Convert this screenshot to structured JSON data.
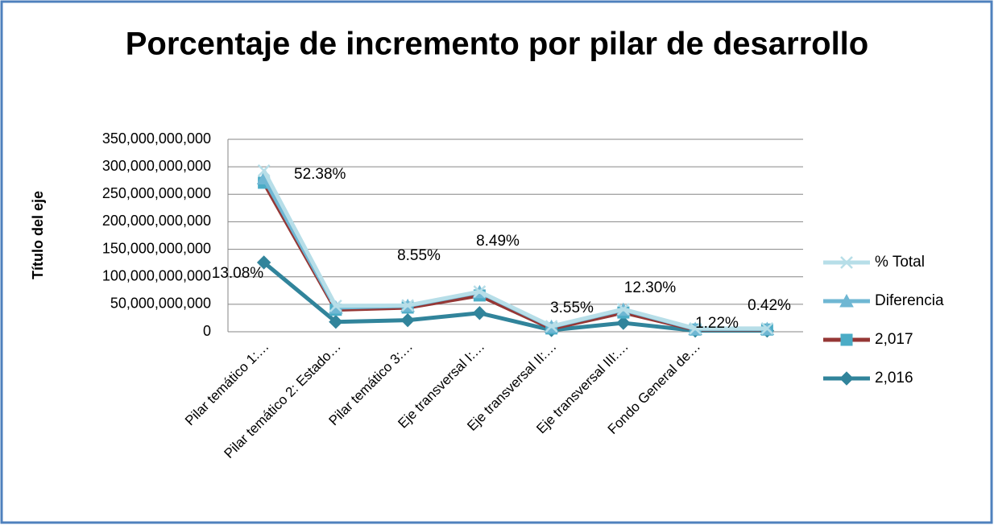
{
  "chart_data": {
    "type": "line",
    "title": "Porcentaje de incremento por pilar de desarrollo",
    "y_axis_label": "Título del eje",
    "categories": [
      "Pilar temático 1:…",
      "Pilar temático 2: Estado…",
      "Pilar temático 3:…",
      "Eje transversal I:…",
      "Eje transversal II:…",
      "Eje transversal III:…",
      "Fondo General de…",
      null
    ],
    "series": [
      {
        "name": "% Total",
        "color": "#b7dee8",
        "marker": "x",
        "values": [
          293000000000,
          47000000000,
          48000000000,
          73000000000,
          10000000000,
          41000000000,
          6000000000,
          6000000000
        ]
      },
      {
        "name": "Diferencia",
        "color": "#6fb7d3",
        "marker": "triangle",
        "values": [
          279000000000,
          44000000000,
          47000000000,
          72000000000,
          9000000000,
          40000000000,
          5000000000,
          5000000000
        ]
      },
      {
        "name": "2,017",
        "color": "#953735",
        "marker_color": "#4bacc6",
        "marker": "square",
        "values": [
          271000000000,
          40000000000,
          44000000000,
          66000000000,
          6000000000,
          35000000000,
          4000000000,
          4000000000
        ]
      },
      {
        "name": "2,016",
        "color": "#31849b",
        "marker": "diamond",
        "values": [
          126000000000,
          18000000000,
          21000000000,
          34000000000,
          3000000000,
          16000000000,
          2000000000,
          2000000000
        ]
      }
    ],
    "annotations": [
      "52.38%",
      "13.08%",
      "8.55%",
      "8.49%",
      "3.55%",
      "12.30%",
      "1.22%",
      "0.42%"
    ],
    "ylim": [
      0,
      350000000000
    ],
    "yticks": [
      0,
      {
        "value": 50000000000,
        "label": "50,000,000,000"
      },
      {
        "value": 100000000000,
        "label": "100,000,000,000"
      },
      {
        "value": 150000000000,
        "label": "150,000,000,000"
      },
      {
        "value": 200000000000,
        "label": "200,000,000,000"
      },
      {
        "value": 250000000000,
        "label": "250,000,000,000"
      },
      {
        "value": 300000000000,
        "label": "300,000,000,000"
      },
      {
        "value": 350000000000,
        "label": "350,000,000,000"
      }
    ],
    "grid": true,
    "legend": "right"
  }
}
